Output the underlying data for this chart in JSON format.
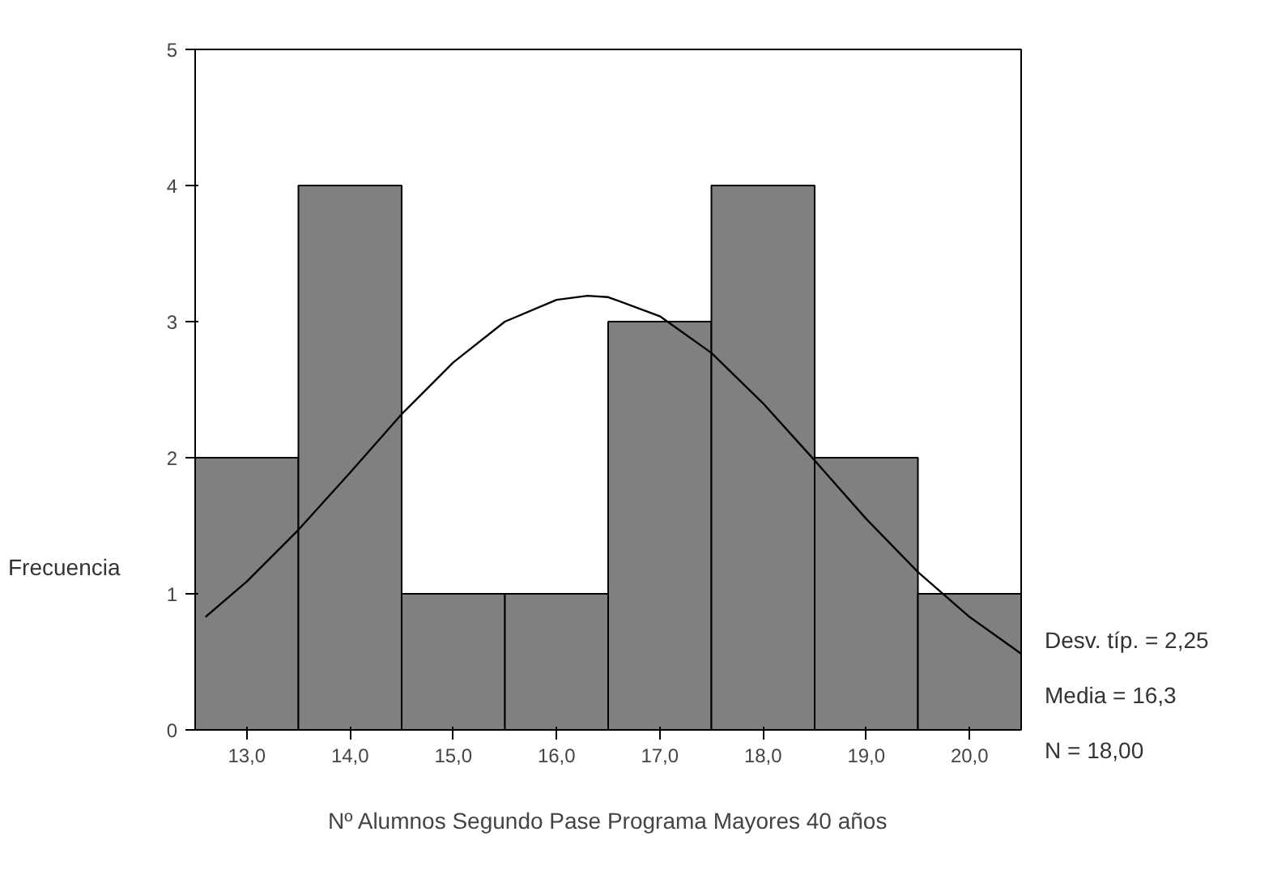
{
  "chart_data": {
    "type": "histogram",
    "xlabel": "Nº Alumnos Segundo Pase Programa Mayores 40 años",
    "ylabel": "Frecuencia",
    "bins": [
      12.5,
      13.5,
      14.5,
      15.5,
      16.5,
      17.5,
      18.5,
      19.5,
      20.5
    ],
    "values": [
      2,
      4,
      1,
      1,
      3,
      4,
      2,
      1
    ],
    "color": "#808080",
    "series": [
      {
        "type": "line",
        "color": "#000000",
        "x": [
          12.6,
          13,
          13.5,
          14,
          14.5,
          15,
          15.5,
          16,
          16.3,
          16.5,
          17,
          17.5,
          18,
          18.5,
          19,
          19.5,
          20,
          20.5
        ],
        "values": [
          0.83,
          1.09,
          1.47,
          1.89,
          2.32,
          2.7,
          3.0,
          3.16,
          3.19,
          3.18,
          3.04,
          2.77,
          2.4,
          1.98,
          1.55,
          1.16,
          0.83,
          0.56
        ]
      }
    ],
    "xlim": [
      12.5,
      20.5
    ],
    "ylim": [
      0,
      5
    ],
    "xticks": [
      {
        "value": 13,
        "label": "13,0"
      },
      {
        "value": 14,
        "label": "14,0"
      },
      {
        "value": 15,
        "label": "15,0"
      },
      {
        "value": 16,
        "label": "16,0"
      },
      {
        "value": 17,
        "label": "17,0"
      },
      {
        "value": 18,
        "label": "18,0"
      },
      {
        "value": 19,
        "label": "19,0"
      },
      {
        "value": 20,
        "label": "20,0"
      }
    ],
    "yticks": [
      0,
      1,
      2,
      3,
      4,
      5
    ],
    "annotations": [
      "Desv. típ. = 2,25",
      "Media = 16,3",
      "N = 18,00"
    ],
    "grid": false
  }
}
